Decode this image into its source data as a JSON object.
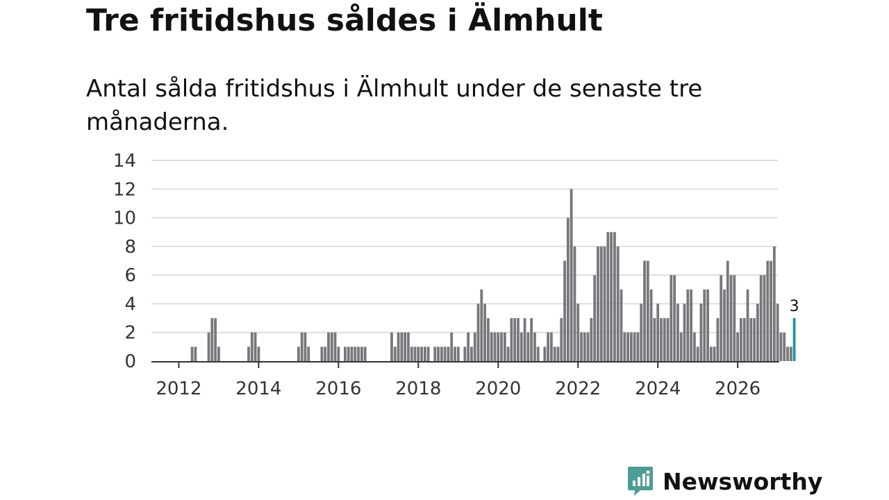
{
  "chart_data": {
    "type": "bar",
    "title": "Tre fritidshus såldes i Älmhult",
    "subtitle": "Antal sålda fritidshus i Älmhult under de senaste tre månaderna.",
    "xlabel": "",
    "ylabel": "",
    "x_start": "2011-06",
    "ylim": [
      0,
      14
    ],
    "yticks": [
      0,
      2,
      4,
      6,
      8,
      10,
      12,
      14
    ],
    "xticks": [
      "2012",
      "2014",
      "2016",
      "2018",
      "2020",
      "2022",
      "2024",
      "2026"
    ],
    "grid": true,
    "bar_color": "#77767b",
    "highlight_color": "#1a9a9a",
    "highlight_label": "3",
    "values": [
      0,
      0,
      0,
      0,
      0,
      0,
      0,
      0,
      0,
      0,
      0,
      1,
      1,
      0,
      0,
      0,
      2,
      3,
      3,
      1,
      0,
      0,
      0,
      0,
      0,
      0,
      0,
      0,
      1,
      2,
      2,
      1,
      0,
      0,
      0,
      0,
      0,
      0,
      0,
      0,
      0,
      0,
      0,
      1,
      2,
      2,
      1,
      0,
      0,
      0,
      1,
      1,
      2,
      2,
      2,
      1,
      0,
      1,
      1,
      1,
      1,
      1,
      1,
      1,
      0,
      0,
      0,
      0,
      0,
      0,
      0,
      2,
      1,
      2,
      2,
      2,
      2,
      1,
      1,
      1,
      1,
      1,
      1,
      0,
      1,
      1,
      1,
      1,
      1,
      2,
      1,
      1,
      0,
      1,
      2,
      1,
      2,
      4,
      5,
      4,
      3,
      2,
      2,
      2,
      2,
      2,
      1,
      3,
      3,
      3,
      2,
      3,
      2,
      3,
      2,
      1,
      0,
      1,
      2,
      2,
      1,
      1,
      3,
      7,
      10,
      12,
      8,
      4,
      2,
      2,
      2,
      3,
      6,
      8,
      8,
      8,
      9,
      9,
      9,
      8,
      5,
      2,
      2,
      2,
      2,
      2,
      4,
      7,
      7,
      5,
      3,
      4,
      3,
      3,
      3,
      6,
      6,
      4,
      2,
      4,
      5,
      5,
      2,
      1,
      4,
      5,
      5,
      1,
      1,
      3,
      6,
      5,
      7,
      6,
      6,
      2,
      3,
      3,
      5,
      3,
      3,
      4,
      6,
      6,
      7,
      7,
      8,
      4,
      2,
      2,
      1,
      1,
      3
    ]
  },
  "brand": {
    "name": "Newsworthy",
    "color": "#4e9c96",
    "icon": "newsworthy-logo-icon"
  }
}
